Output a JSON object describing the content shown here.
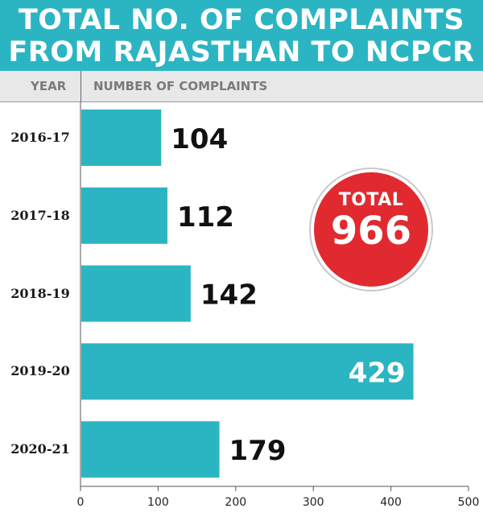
{
  "title_lines": [
    "TOTAL NO. OF COMPLAINTS",
    "FROM RAJASTHAN TO NCPCR"
  ],
  "header": {
    "year": "YEAR",
    "number": "NUMBER OF COMPLAINTS"
  },
  "total": {
    "label": "TOTAL",
    "value": "966"
  },
  "colors": {
    "bar": "#2bb5c3",
    "total_circle": "#e02a2f",
    "banner": "#2bb5c3"
  },
  "chart_data": {
    "type": "bar",
    "orientation": "horizontal",
    "categories": [
      "2016-17",
      "2017-18",
      "2018-19",
      "2019-20",
      "2020-21"
    ],
    "values": [
      104,
      112,
      142,
      429,
      179
    ],
    "data_labels": [
      "104",
      "112",
      "142",
      "429",
      "179"
    ],
    "xlim": [
      0,
      500
    ],
    "xticks": [
      0,
      100,
      200,
      300,
      400,
      500
    ],
    "xtick_labels": [
      "0",
      "100",
      "200",
      "300",
      "400",
      "500"
    ],
    "grid": false,
    "legend": "none"
  }
}
